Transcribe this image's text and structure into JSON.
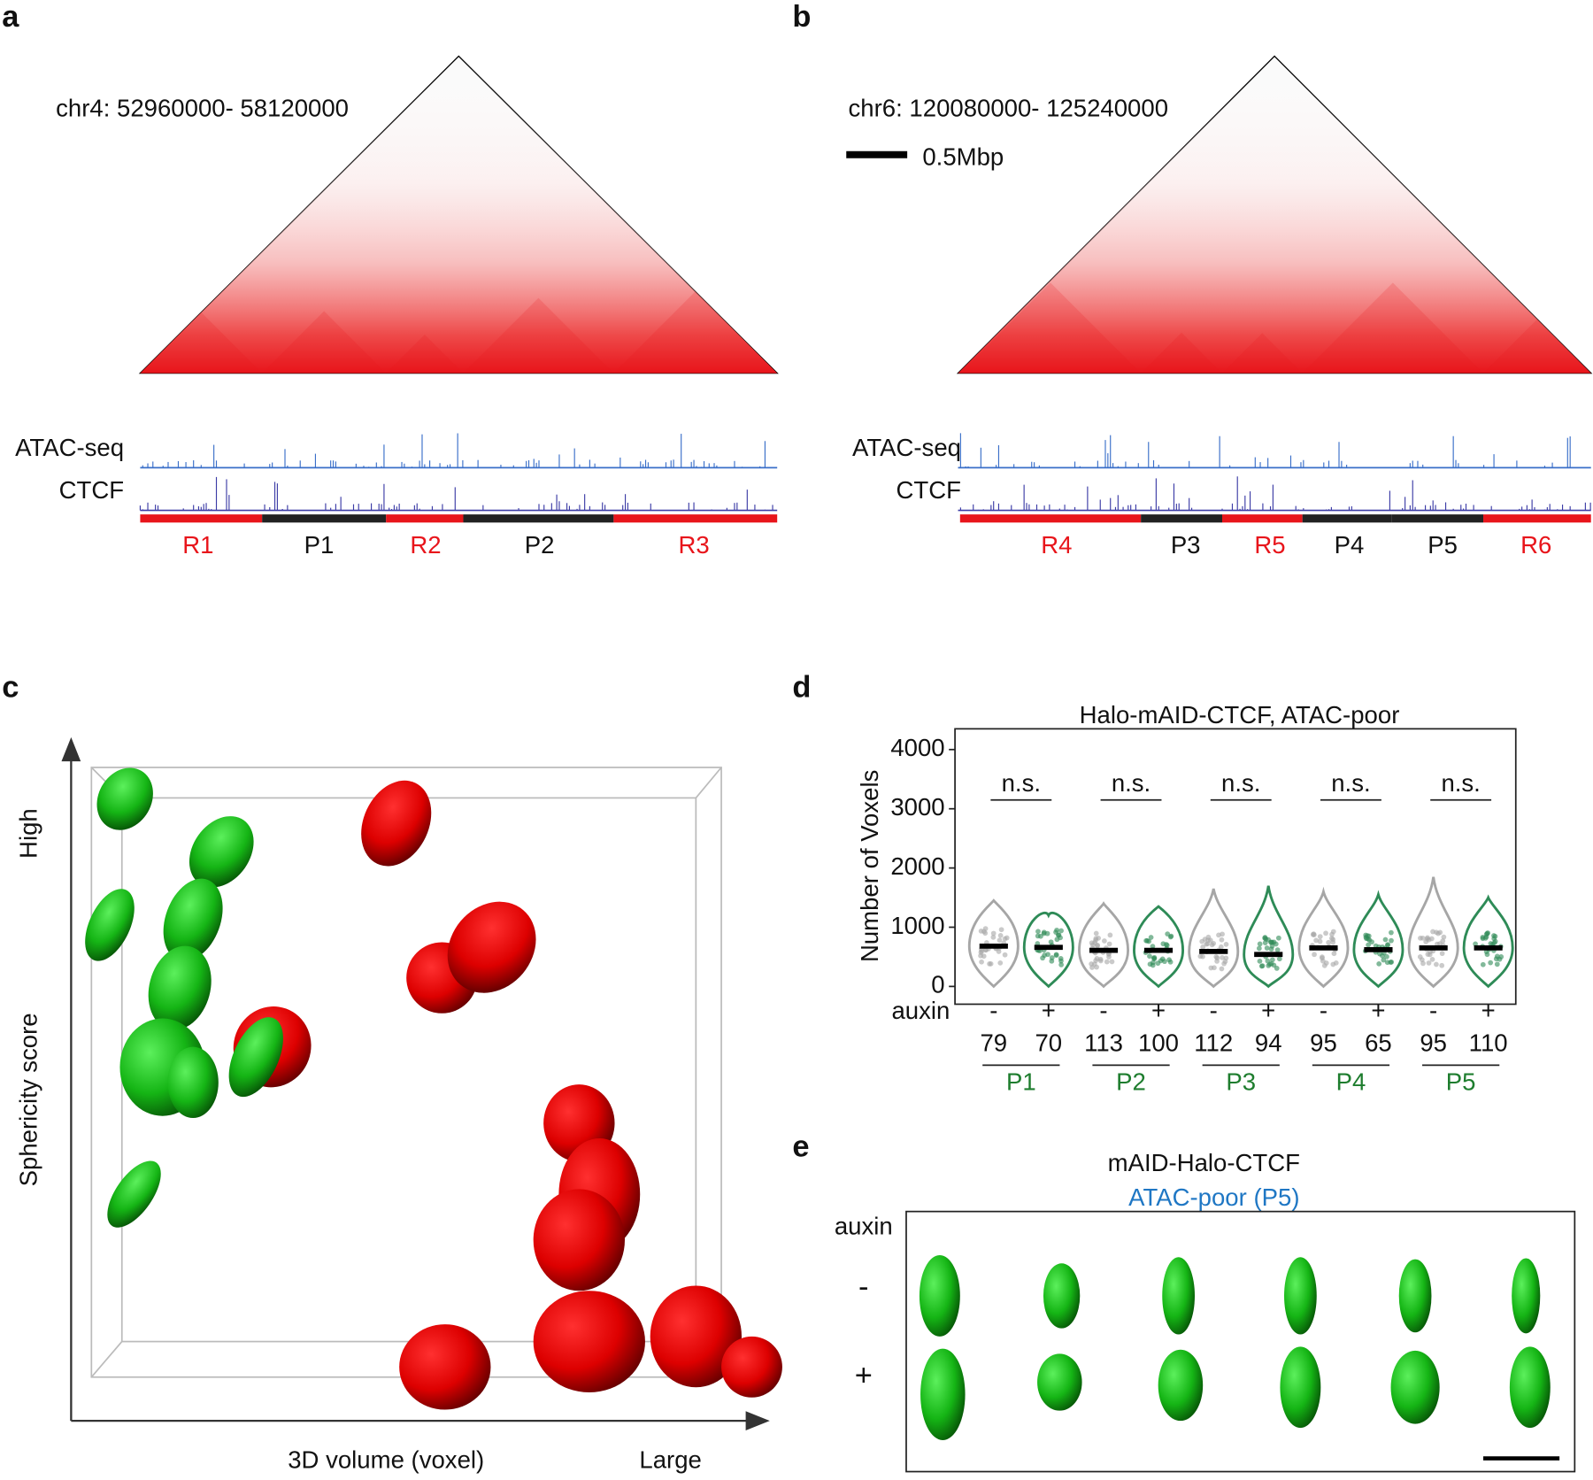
{
  "panel_labels": [
    "a",
    "b",
    "c",
    "d",
    "e"
  ],
  "panel_a": {
    "region": "chr4: 52960000- 58120000",
    "tracks": [
      "ATAC-seq",
      "CTCF"
    ],
    "segments": [
      "R1",
      "P1",
      "R2",
      "P2",
      "R3"
    ]
  },
  "panel_b": {
    "region": "chr6: 120080000- 125240000",
    "scale_bar": "0.5Mbp",
    "tracks": [
      "ATAC-seq",
      "CTCF"
    ],
    "segments": [
      "R4",
      "P3",
      "R5",
      "P4",
      "P5",
      "R6"
    ]
  },
  "panel_c": {
    "y_high": "High",
    "y_label": "Sphericity score",
    "x_label": "3D volume (voxel)",
    "x_large": "Large"
  },
  "chart_data": {
    "type": "violin",
    "title": "Halo-mAID-CTCF, ATAC-poor",
    "y_label": "Number of Voxels",
    "group_axis_label": "auxin",
    "categories": [
      "P1",
      "P2",
      "P3",
      "P4",
      "P5"
    ],
    "significance": [
      "n.s.",
      "n.s.",
      "n.s.",
      "n.s.",
      "n.s."
    ],
    "series": [
      {
        "name": "-",
        "color": "#a6a6a6",
        "values": [
          680,
          610,
          590,
          650,
          650
        ],
        "max": [
          1450,
          1400,
          1650,
          1600,
          1850
        ],
        "n": [
          79,
          113,
          112,
          95,
          95
        ]
      },
      {
        "name": "+",
        "color": "#2e8b57",
        "values": [
          660,
          610,
          540,
          620,
          650
        ],
        "max": [
          1200,
          1350,
          1700,
          1550,
          1500
        ],
        "n": [
          70,
          100,
          94,
          65,
          110
        ]
      }
    ],
    "ylim": [
      -300,
      4350
    ],
    "yticks": [
      0,
      1000,
      2000,
      3000,
      4000
    ]
  },
  "panel_e": {
    "title": "mAID-Halo-CTCF",
    "subtitle": "ATAC-poor (P5)",
    "row_label": "auxin",
    "rows": [
      "-",
      "+"
    ]
  }
}
